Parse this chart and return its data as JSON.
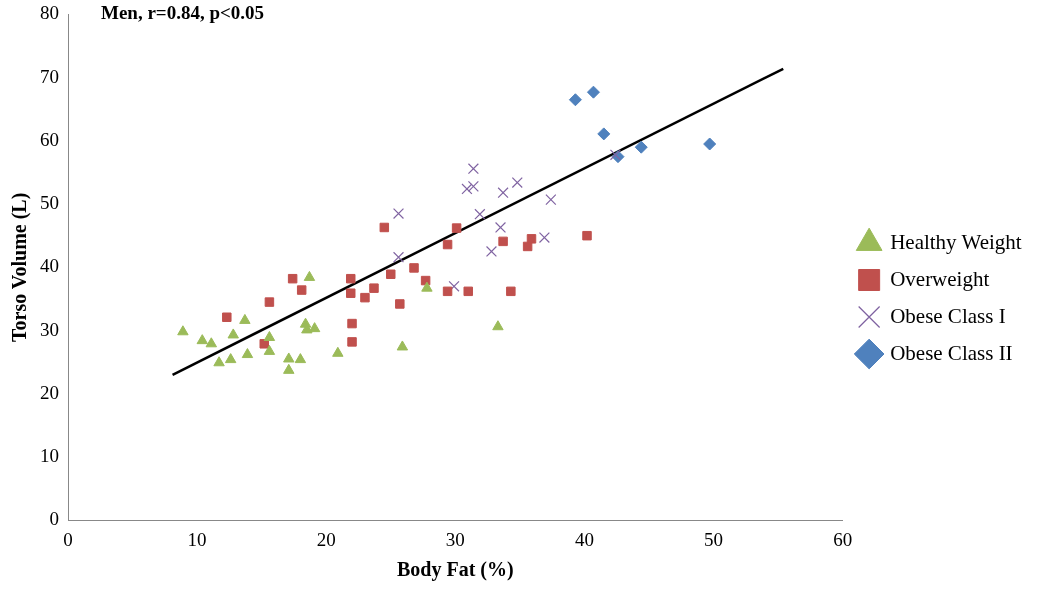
{
  "chart_data": {
    "type": "scatter",
    "title": "Men, r=0.84, p<0.05",
    "xlabel": "Body Fat (%)",
    "ylabel": "Torso Volume (L)",
    "xlim": [
      0,
      60
    ],
    "xticks": [
      0,
      10,
      20,
      30,
      40,
      50,
      60
    ],
    "ylim": [
      0,
      80
    ],
    "yticks": [
      0,
      10,
      20,
      30,
      40,
      50,
      60,
      70,
      80
    ],
    "grid": false,
    "legend": "right",
    "series": [
      {
        "name": "Healthy Weight",
        "color": "#9bbb59",
        "marker": "triangle",
        "x": [
          8.9,
          10.4,
          11.1,
          11.7,
          12.6,
          12.8,
          13.7,
          13.9,
          15.6,
          15.6,
          17.1,
          17.1,
          18.0,
          18.4,
          18.5,
          18.7,
          19.1,
          20.9,
          25.9,
          27.8,
          33.3
        ],
        "values": [
          29.8,
          28.4,
          27.9,
          24.9,
          25.4,
          29.3,
          31.6,
          26.2,
          28.9,
          26.7,
          25.5,
          23.7,
          25.4,
          31.0,
          30.1,
          38.4,
          30.3,
          26.4,
          27.4,
          36.7,
          30.6
        ]
      },
      {
        "name": "Overweight",
        "color": "#c0504d",
        "marker": "square",
        "x": [
          12.3,
          15.2,
          15.6,
          17.4,
          18.1,
          21.9,
          21.9,
          22.0,
          22.0,
          23.0,
          23.7,
          24.5,
          25.0,
          25.7,
          26.8,
          27.7,
          29.4,
          30.1,
          29.4,
          31.0,
          33.7,
          34.3,
          35.6,
          35.9,
          40.2
        ],
        "values": [
          32.1,
          27.9,
          34.5,
          38.2,
          36.4,
          38.2,
          35.9,
          31.1,
          28.2,
          35.2,
          36.7,
          46.3,
          38.9,
          34.2,
          39.9,
          37.9,
          43.6,
          46.2,
          36.2,
          36.2,
          44.1,
          36.2,
          43.3,
          44.5,
          45.0
        ]
      },
      {
        "name": "Obese Class I",
        "color": "#8064a2",
        "marker": "cross",
        "x": [
          25.6,
          25.6,
          29.9,
          31.4,
          30.9,
          31.4,
          31.9,
          33.7,
          34.8,
          33.5,
          32.8,
          37.4,
          36.9,
          42.4
        ],
        "values": [
          48.5,
          41.6,
          37.0,
          55.6,
          52.4,
          52.8,
          48.4,
          51.8,
          53.4,
          46.3,
          42.5,
          50.7,
          44.7,
          57.8
        ]
      },
      {
        "name": "Obese Class II",
        "color": "#4f81bd",
        "marker": "diamond",
        "x": [
          39.3,
          40.7,
          41.5,
          42.6,
          44.4,
          49.7
        ],
        "values": [
          66.5,
          67.7,
          61.1,
          57.5,
          59.0,
          59.5
        ]
      },
      {
        "type": "line",
        "color": "#000000",
        "marker": "none",
        "line_style": "solid",
        "x": [
          8.1,
          55.4
        ],
        "values": [
          23.0,
          71.4
        ]
      }
    ]
  }
}
